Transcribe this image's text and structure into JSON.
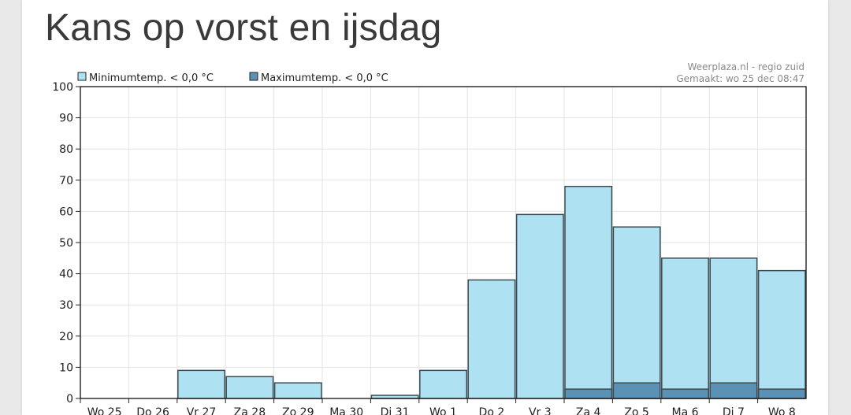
{
  "page": {
    "title": "Kans op vorst en ijsdag"
  },
  "chart_data": {
    "type": "bar",
    "categories": [
      "Wo 25",
      "Do 26",
      "Vr 27",
      "Za 28",
      "Zo 29",
      "Ma 30",
      "Di 31",
      "Wo 1",
      "Do 2",
      "Vr 3",
      "Za 4",
      "Zo 5",
      "Ma 6",
      "Di 7",
      "Wo 8"
    ],
    "series": [
      {
        "name": "Minimumtemp. < 0,0 °C",
        "color": "#aee1f2",
        "values": [
          0,
          0,
          9,
          7,
          5,
          0,
          1,
          9,
          38,
          59,
          68,
          55,
          45,
          45,
          41
        ]
      },
      {
        "name": "Maximumtemp. < 0,0 °C",
        "color": "#5a91b4",
        "values": [
          0,
          0,
          0,
          0,
          0,
          0,
          0,
          0,
          0,
          0,
          3,
          5,
          3,
          5,
          3
        ]
      }
    ],
    "ylim": [
      0,
      100
    ],
    "yticks": [
      0,
      10,
      20,
      30,
      40,
      50,
      60,
      70,
      80,
      90,
      100
    ],
    "grid": true,
    "legend": "top-left",
    "source": "Weerplaza.nl - regio zuid",
    "created": "Gemaakt: wo 25 dec 08:47"
  }
}
